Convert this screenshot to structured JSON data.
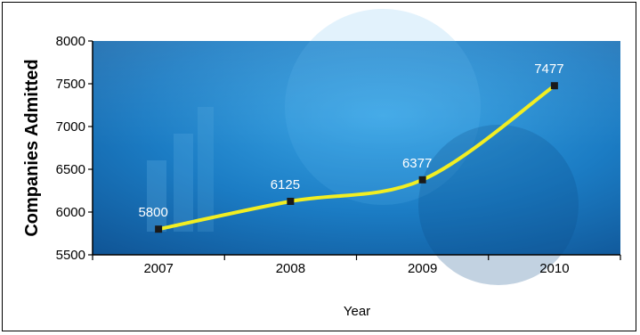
{
  "chart_data": {
    "type": "line",
    "title": "",
    "xlabel": "Year",
    "ylabel": "Companies Admitted",
    "categories": [
      "2007",
      "2008",
      "2009",
      "2010"
    ],
    "series": [
      {
        "values": [
          5800,
          6125,
          6377,
          7477
        ]
      }
    ],
    "data_labels": [
      "5800",
      "6125",
      "6377",
      "7477"
    ],
    "yticks": [
      5500,
      6000,
      6500,
      7000,
      7500,
      8000
    ],
    "ylim": [
      5500,
      8000
    ],
    "grid": false,
    "line_color": "#f2ee22",
    "marker_color": "#1a1a1a",
    "background_color": "#1a73c0"
  }
}
